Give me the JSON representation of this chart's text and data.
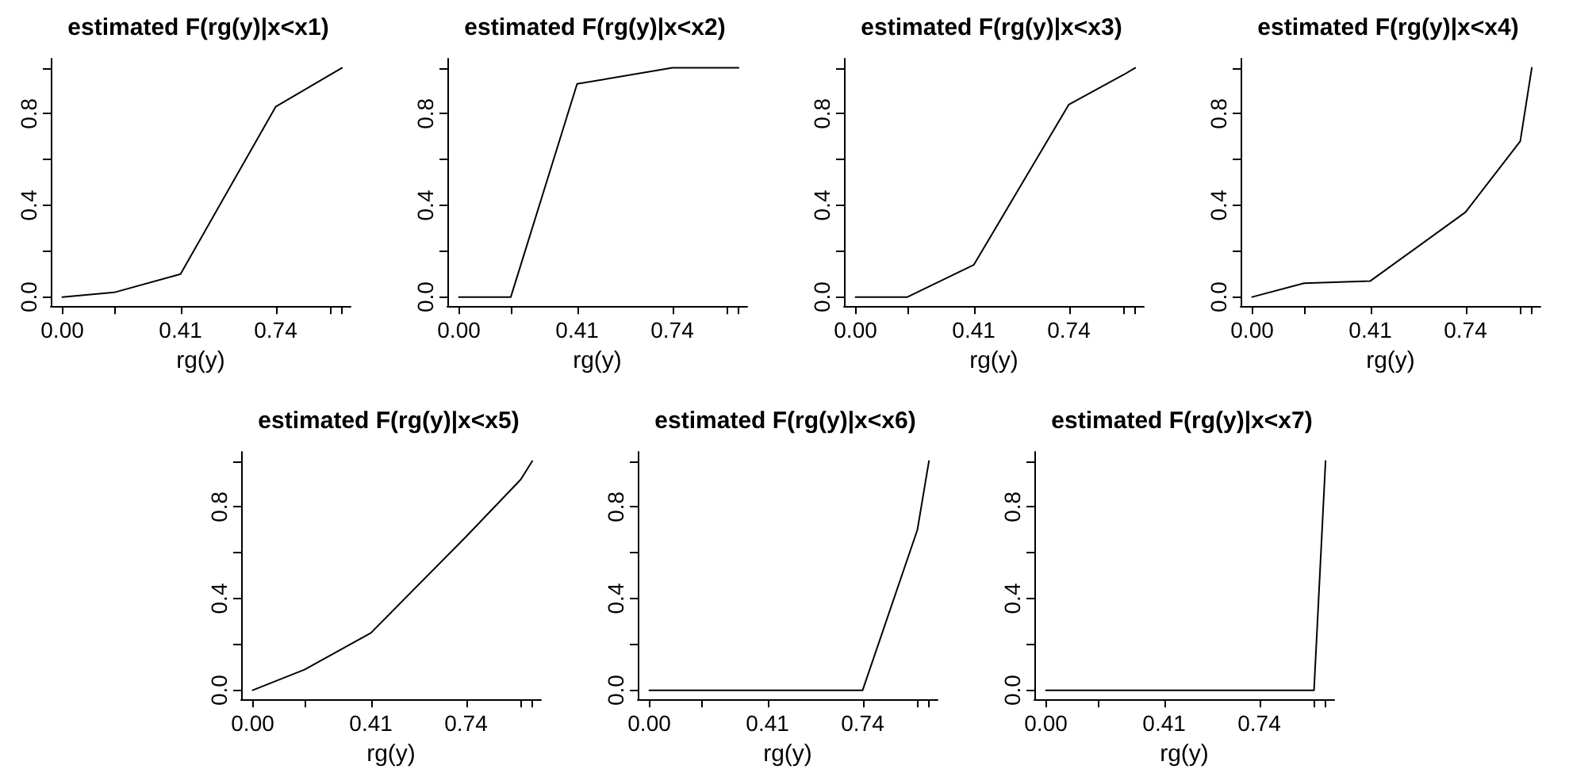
{
  "chart_data": [
    {
      "type": "line",
      "title": "estimated F(rg(y)|x<x1)",
      "xlabel": "rg(y)",
      "color": "#000000",
      "marker": "none",
      "line_style": "solid",
      "x": [
        0,
        0.18,
        0.41,
        0.74,
        0.93,
        0.97
      ],
      "values": [
        0,
        0.02,
        0.1,
        0.83,
        0.97,
        1.0
      ],
      "xlim": [
        -0.04,
        1.0
      ],
      "ylim": [
        -0.04,
        1.04
      ],
      "xticks": [
        {
          "value": 0,
          "label": "0.00"
        },
        {
          "value": 0.18,
          "label": null
        },
        {
          "value": 0.41,
          "label": "0.41"
        },
        {
          "value": 0.74,
          "label": "0.74"
        },
        {
          "value": 0.93,
          "label": null
        },
        {
          "value": 0.97,
          "label": null
        }
      ],
      "yticks": [
        {
          "value": 0,
          "label": "0.0"
        },
        {
          "value": 0.2,
          "label": null
        },
        {
          "value": 0.4,
          "label": "0.4"
        },
        {
          "value": 0.6,
          "label": null
        },
        {
          "value": 0.8,
          "label": "0.8"
        },
        {
          "value": 1.0,
          "label": null
        }
      ]
    },
    {
      "type": "line",
      "title": "estimated F(rg(y)|x<x2)",
      "xlabel": "rg(y)",
      "color": "#000000",
      "marker": "none",
      "line_style": "solid",
      "x": [
        0,
        0.18,
        0.41,
        0.74,
        0.93,
        0.97
      ],
      "values": [
        0,
        0,
        0.93,
        1.0,
        1.0,
        1.0
      ],
      "xlim": [
        -0.04,
        1.0
      ],
      "ylim": [
        -0.04,
        1.04
      ],
      "xticks": [
        {
          "value": 0,
          "label": "0.00"
        },
        {
          "value": 0.18,
          "label": null
        },
        {
          "value": 0.41,
          "label": "0.41"
        },
        {
          "value": 0.74,
          "label": "0.74"
        },
        {
          "value": 0.93,
          "label": null
        },
        {
          "value": 0.97,
          "label": null
        }
      ],
      "yticks": [
        {
          "value": 0,
          "label": "0.0"
        },
        {
          "value": 0.2,
          "label": null
        },
        {
          "value": 0.4,
          "label": "0.4"
        },
        {
          "value": 0.6,
          "label": null
        },
        {
          "value": 0.8,
          "label": "0.8"
        },
        {
          "value": 1.0,
          "label": null
        }
      ]
    },
    {
      "type": "line",
      "title": "estimated F(rg(y)|x<x3)",
      "xlabel": "rg(y)",
      "color": "#000000",
      "marker": "none",
      "line_style": "solid",
      "x": [
        0,
        0.18,
        0.41,
        0.74,
        0.93,
        0.97
      ],
      "values": [
        0,
        0,
        0.14,
        0.84,
        0.97,
        1.0
      ],
      "xlim": [
        -0.04,
        1.0
      ],
      "ylim": [
        -0.04,
        1.04
      ],
      "xticks": [
        {
          "value": 0,
          "label": "0.00"
        },
        {
          "value": 0.18,
          "label": null
        },
        {
          "value": 0.41,
          "label": "0.41"
        },
        {
          "value": 0.74,
          "label": "0.74"
        },
        {
          "value": 0.93,
          "label": null
        },
        {
          "value": 0.97,
          "label": null
        }
      ],
      "yticks": [
        {
          "value": 0,
          "label": "0.0"
        },
        {
          "value": 0.2,
          "label": null
        },
        {
          "value": 0.4,
          "label": "0.4"
        },
        {
          "value": 0.6,
          "label": null
        },
        {
          "value": 0.8,
          "label": "0.8"
        },
        {
          "value": 1.0,
          "label": null
        }
      ]
    },
    {
      "type": "line",
      "title": "estimated F(rg(y)|x<x4)",
      "xlabel": "rg(y)",
      "color": "#000000",
      "marker": "none",
      "line_style": "solid",
      "x": [
        0,
        0.18,
        0.41,
        0.74,
        0.93,
        0.97
      ],
      "values": [
        0,
        0.06,
        0.07,
        0.37,
        0.68,
        1.0
      ],
      "xlim": [
        -0.04,
        1.0
      ],
      "ylim": [
        -0.04,
        1.04
      ],
      "xticks": [
        {
          "value": 0,
          "label": "0.00"
        },
        {
          "value": 0.18,
          "label": null
        },
        {
          "value": 0.41,
          "label": "0.41"
        },
        {
          "value": 0.74,
          "label": "0.74"
        },
        {
          "value": 0.93,
          "label": null
        },
        {
          "value": 0.97,
          "label": null
        }
      ],
      "yticks": [
        {
          "value": 0,
          "label": "0.0"
        },
        {
          "value": 0.2,
          "label": null
        },
        {
          "value": 0.4,
          "label": "0.4"
        },
        {
          "value": 0.6,
          "label": null
        },
        {
          "value": 0.8,
          "label": "0.8"
        },
        {
          "value": 1.0,
          "label": null
        }
      ]
    },
    {
      "type": "line",
      "title": "estimated F(rg(y)|x<x5)",
      "xlabel": "rg(y)",
      "color": "#000000",
      "marker": "none",
      "line_style": "solid",
      "x": [
        0,
        0.18,
        0.41,
        0.74,
        0.93,
        0.97
      ],
      "values": [
        0,
        0.09,
        0.25,
        0.67,
        0.92,
        1.0
      ],
      "xlim": [
        -0.04,
        1.0
      ],
      "ylim": [
        -0.04,
        1.04
      ],
      "xticks": [
        {
          "value": 0,
          "label": "0.00"
        },
        {
          "value": 0.18,
          "label": null
        },
        {
          "value": 0.41,
          "label": "0.41"
        },
        {
          "value": 0.74,
          "label": "0.74"
        },
        {
          "value": 0.93,
          "label": null
        },
        {
          "value": 0.97,
          "label": null
        }
      ],
      "yticks": [
        {
          "value": 0,
          "label": "0.0"
        },
        {
          "value": 0.2,
          "label": null
        },
        {
          "value": 0.4,
          "label": "0.4"
        },
        {
          "value": 0.6,
          "label": null
        },
        {
          "value": 0.8,
          "label": "0.8"
        },
        {
          "value": 1.0,
          "label": null
        }
      ]
    },
    {
      "type": "line",
      "title": "estimated F(rg(y)|x<x6)",
      "xlabel": "rg(y)",
      "color": "#000000",
      "marker": "none",
      "line_style": "solid",
      "x": [
        0,
        0.18,
        0.41,
        0.74,
        0.93,
        0.97
      ],
      "values": [
        0,
        0,
        0,
        0,
        0.7,
        1.0
      ],
      "xlim": [
        -0.04,
        1.0
      ],
      "ylim": [
        -0.04,
        1.04
      ],
      "xticks": [
        {
          "value": 0,
          "label": "0.00"
        },
        {
          "value": 0.18,
          "label": null
        },
        {
          "value": 0.41,
          "label": "0.41"
        },
        {
          "value": 0.74,
          "label": "0.74"
        },
        {
          "value": 0.93,
          "label": null
        },
        {
          "value": 0.97,
          "label": null
        }
      ],
      "yticks": [
        {
          "value": 0,
          "label": "0.0"
        },
        {
          "value": 0.2,
          "label": null
        },
        {
          "value": 0.4,
          "label": "0.4"
        },
        {
          "value": 0.6,
          "label": null
        },
        {
          "value": 0.8,
          "label": "0.8"
        },
        {
          "value": 1.0,
          "label": null
        }
      ]
    },
    {
      "type": "line",
      "title": "estimated F(rg(y)|x<x7)",
      "xlabel": "rg(y)",
      "color": "#000000",
      "marker": "none",
      "line_style": "solid",
      "x": [
        0,
        0.18,
        0.41,
        0.74,
        0.93,
        0.97
      ],
      "values": [
        0,
        0,
        0,
        0,
        0,
        1.0
      ],
      "xlim": [
        -0.04,
        1.0
      ],
      "ylim": [
        -0.04,
        1.04
      ],
      "xticks": [
        {
          "value": 0,
          "label": "0.00"
        },
        {
          "value": 0.18,
          "label": null
        },
        {
          "value": 0.41,
          "label": "0.41"
        },
        {
          "value": 0.74,
          "label": "0.74"
        },
        {
          "value": 0.93,
          "label": null
        },
        {
          "value": 0.97,
          "label": null
        }
      ],
      "yticks": [
        {
          "value": 0,
          "label": "0.0"
        },
        {
          "value": 0.2,
          "label": null
        },
        {
          "value": 0.4,
          "label": "0.4"
        },
        {
          "value": 0.6,
          "label": null
        },
        {
          "value": 0.8,
          "label": "0.8"
        },
        {
          "value": 1.0,
          "label": null
        }
      ]
    }
  ]
}
